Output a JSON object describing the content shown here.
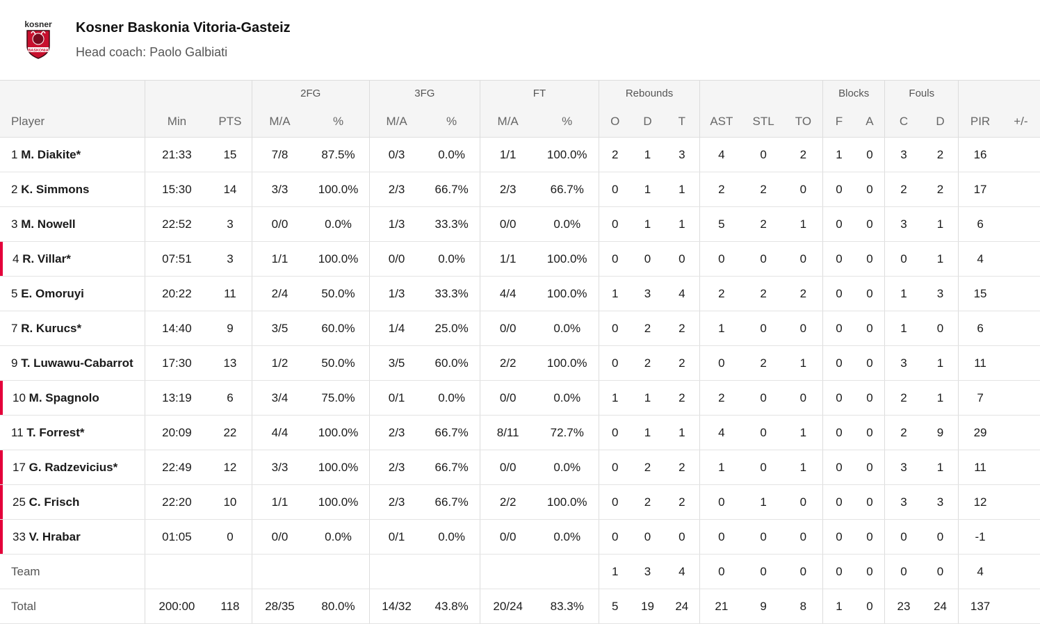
{
  "team": {
    "name": "Kosner Baskonia Vitoria-Gasteiz",
    "coach": "Head coach: Paolo Galbiati",
    "logo_text_top": "kosner",
    "logo_text_bottom": "BASKONIA"
  },
  "groups": {
    "fg2": "2FG",
    "fg3": "3FG",
    "ft": "FT",
    "rebounds": "Rebounds",
    "blocks": "Blocks",
    "fouls": "Fouls"
  },
  "columns": {
    "player": "Player",
    "min": "Min",
    "pts": "PTS",
    "fg2_ma": "M/A",
    "fg2_pct": "%",
    "fg3_ma": "M/A",
    "fg3_pct": "%",
    "ft_ma": "M/A",
    "ft_pct": "%",
    "reb_o": "O",
    "reb_d": "D",
    "reb_t": "T",
    "ast": "AST",
    "stl": "STL",
    "to": "TO",
    "blk_f": "F",
    "blk_a": "A",
    "foul_c": "C",
    "foul_d": "D",
    "pir": "PIR",
    "pm": "+/-"
  },
  "players": [
    {
      "num": "1",
      "name": "M. Diakite*",
      "oncourt": false,
      "min": "21:33",
      "pts": "15",
      "fg2_ma": "7/8",
      "fg2_pct": "87.5%",
      "fg3_ma": "0/3",
      "fg3_pct": "0.0%",
      "ft_ma": "1/1",
      "ft_pct": "100.0%",
      "reb_o": "2",
      "reb_d": "1",
      "reb_t": "3",
      "ast": "4",
      "stl": "0",
      "to": "2",
      "blk_f": "1",
      "blk_a": "0",
      "foul_c": "3",
      "foul_d": "2",
      "pir": "16",
      "pm": ""
    },
    {
      "num": "2",
      "name": "K. Simmons",
      "oncourt": false,
      "min": "15:30",
      "pts": "14",
      "fg2_ma": "3/3",
      "fg2_pct": "100.0%",
      "fg3_ma": "2/3",
      "fg3_pct": "66.7%",
      "ft_ma": "2/3",
      "ft_pct": "66.7%",
      "reb_o": "0",
      "reb_d": "1",
      "reb_t": "1",
      "ast": "2",
      "stl": "2",
      "to": "0",
      "blk_f": "0",
      "blk_a": "0",
      "foul_c": "2",
      "foul_d": "2",
      "pir": "17",
      "pm": ""
    },
    {
      "num": "3",
      "name": "M. Nowell",
      "oncourt": false,
      "min": "22:52",
      "pts": "3",
      "fg2_ma": "0/0",
      "fg2_pct": "0.0%",
      "fg3_ma": "1/3",
      "fg3_pct": "33.3%",
      "ft_ma": "0/0",
      "ft_pct": "0.0%",
      "reb_o": "0",
      "reb_d": "1",
      "reb_t": "1",
      "ast": "5",
      "stl": "2",
      "to": "1",
      "blk_f": "0",
      "blk_a": "0",
      "foul_c": "3",
      "foul_d": "1",
      "pir": "6",
      "pm": ""
    },
    {
      "num": "4",
      "name": "R. Villar*",
      "oncourt": true,
      "min": "07:51",
      "pts": "3",
      "fg2_ma": "1/1",
      "fg2_pct": "100.0%",
      "fg3_ma": "0/0",
      "fg3_pct": "0.0%",
      "ft_ma": "1/1",
      "ft_pct": "100.0%",
      "reb_o": "0",
      "reb_d": "0",
      "reb_t": "0",
      "ast": "0",
      "stl": "0",
      "to": "0",
      "blk_f": "0",
      "blk_a": "0",
      "foul_c": "0",
      "foul_d": "1",
      "pir": "4",
      "pm": ""
    },
    {
      "num": "5",
      "name": "E. Omoruyi",
      "oncourt": false,
      "min": "20:22",
      "pts": "11",
      "fg2_ma": "2/4",
      "fg2_pct": "50.0%",
      "fg3_ma": "1/3",
      "fg3_pct": "33.3%",
      "ft_ma": "4/4",
      "ft_pct": "100.0%",
      "reb_o": "1",
      "reb_d": "3",
      "reb_t": "4",
      "ast": "2",
      "stl": "2",
      "to": "2",
      "blk_f": "0",
      "blk_a": "0",
      "foul_c": "1",
      "foul_d": "3",
      "pir": "15",
      "pm": ""
    },
    {
      "num": "7",
      "name": "R. Kurucs*",
      "oncourt": false,
      "min": "14:40",
      "pts": "9",
      "fg2_ma": "3/5",
      "fg2_pct": "60.0%",
      "fg3_ma": "1/4",
      "fg3_pct": "25.0%",
      "ft_ma": "0/0",
      "ft_pct": "0.0%",
      "reb_o": "0",
      "reb_d": "2",
      "reb_t": "2",
      "ast": "1",
      "stl": "0",
      "to": "0",
      "blk_f": "0",
      "blk_a": "0",
      "foul_c": "1",
      "foul_d": "0",
      "pir": "6",
      "pm": ""
    },
    {
      "num": "9",
      "name": "T. Luwawu-Cabarrot",
      "oncourt": false,
      "min": "17:30",
      "pts": "13",
      "fg2_ma": "1/2",
      "fg2_pct": "50.0%",
      "fg3_ma": "3/5",
      "fg3_pct": "60.0%",
      "ft_ma": "2/2",
      "ft_pct": "100.0%",
      "reb_o": "0",
      "reb_d": "2",
      "reb_t": "2",
      "ast": "0",
      "stl": "2",
      "to": "1",
      "blk_f": "0",
      "blk_a": "0",
      "foul_c": "3",
      "foul_d": "1",
      "pir": "11",
      "pm": ""
    },
    {
      "num": "10",
      "name": "M. Spagnolo",
      "oncourt": true,
      "min": "13:19",
      "pts": "6",
      "fg2_ma": "3/4",
      "fg2_pct": "75.0%",
      "fg3_ma": "0/1",
      "fg3_pct": "0.0%",
      "ft_ma": "0/0",
      "ft_pct": "0.0%",
      "reb_o": "1",
      "reb_d": "1",
      "reb_t": "2",
      "ast": "2",
      "stl": "0",
      "to": "0",
      "blk_f": "0",
      "blk_a": "0",
      "foul_c": "2",
      "foul_d": "1",
      "pir": "7",
      "pm": ""
    },
    {
      "num": "11",
      "name": "T. Forrest*",
      "oncourt": false,
      "min": "20:09",
      "pts": "22",
      "fg2_ma": "4/4",
      "fg2_pct": "100.0%",
      "fg3_ma": "2/3",
      "fg3_pct": "66.7%",
      "ft_ma": "8/11",
      "ft_pct": "72.7%",
      "reb_o": "0",
      "reb_d": "1",
      "reb_t": "1",
      "ast": "4",
      "stl": "0",
      "to": "1",
      "blk_f": "0",
      "blk_a": "0",
      "foul_c": "2",
      "foul_d": "9",
      "pir": "29",
      "pm": ""
    },
    {
      "num": "17",
      "name": "G. Radzevicius*",
      "oncourt": true,
      "min": "22:49",
      "pts": "12",
      "fg2_ma": "3/3",
      "fg2_pct": "100.0%",
      "fg3_ma": "2/3",
      "fg3_pct": "66.7%",
      "ft_ma": "0/0",
      "ft_pct": "0.0%",
      "reb_o": "0",
      "reb_d": "2",
      "reb_t": "2",
      "ast": "1",
      "stl": "0",
      "to": "1",
      "blk_f": "0",
      "blk_a": "0",
      "foul_c": "3",
      "foul_d": "1",
      "pir": "11",
      "pm": ""
    },
    {
      "num": "25",
      "name": "C. Frisch",
      "oncourt": true,
      "min": "22:20",
      "pts": "10",
      "fg2_ma": "1/1",
      "fg2_pct": "100.0%",
      "fg3_ma": "2/3",
      "fg3_pct": "66.7%",
      "ft_ma": "2/2",
      "ft_pct": "100.0%",
      "reb_o": "0",
      "reb_d": "2",
      "reb_t": "2",
      "ast": "0",
      "stl": "1",
      "to": "0",
      "blk_f": "0",
      "blk_a": "0",
      "foul_c": "3",
      "foul_d": "3",
      "pir": "12",
      "pm": ""
    },
    {
      "num": "33",
      "name": "V. Hrabar",
      "oncourt": true,
      "min": "01:05",
      "pts": "0",
      "fg2_ma": "0/0",
      "fg2_pct": "0.0%",
      "fg3_ma": "0/1",
      "fg3_pct": "0.0%",
      "ft_ma": "0/0",
      "ft_pct": "0.0%",
      "reb_o": "0",
      "reb_d": "0",
      "reb_t": "0",
      "ast": "0",
      "stl": "0",
      "to": "0",
      "blk_f": "0",
      "blk_a": "0",
      "foul_c": "0",
      "foul_d": "0",
      "pir": "-1",
      "pm": ""
    }
  ],
  "team_row": {
    "label": "Team",
    "min": "",
    "pts": "",
    "fg2_ma": "",
    "fg2_pct": "",
    "fg3_ma": "",
    "fg3_pct": "",
    "ft_ma": "",
    "ft_pct": "",
    "reb_o": "1",
    "reb_d": "3",
    "reb_t": "4",
    "ast": "0",
    "stl": "0",
    "to": "0",
    "blk_f": "0",
    "blk_a": "0",
    "foul_c": "0",
    "foul_d": "0",
    "pir": "4",
    "pm": ""
  },
  "total_row": {
    "label": "Total",
    "min": "200:00",
    "pts": "118",
    "fg2_ma": "28/35",
    "fg2_pct": "80.0%",
    "fg3_ma": "14/32",
    "fg3_pct": "43.8%",
    "ft_ma": "20/24",
    "ft_pct": "83.3%",
    "reb_o": "5",
    "reb_d": "19",
    "reb_t": "24",
    "ast": "21",
    "stl": "9",
    "to": "8",
    "blk_f": "1",
    "blk_a": "0",
    "foul_c": "23",
    "foul_d": "24",
    "pir": "137",
    "pm": ""
  },
  "colors": {
    "oncourt_marker": "#e4003a",
    "header_bg": "#f5f5f5",
    "logo_red": "#c8102e"
  }
}
